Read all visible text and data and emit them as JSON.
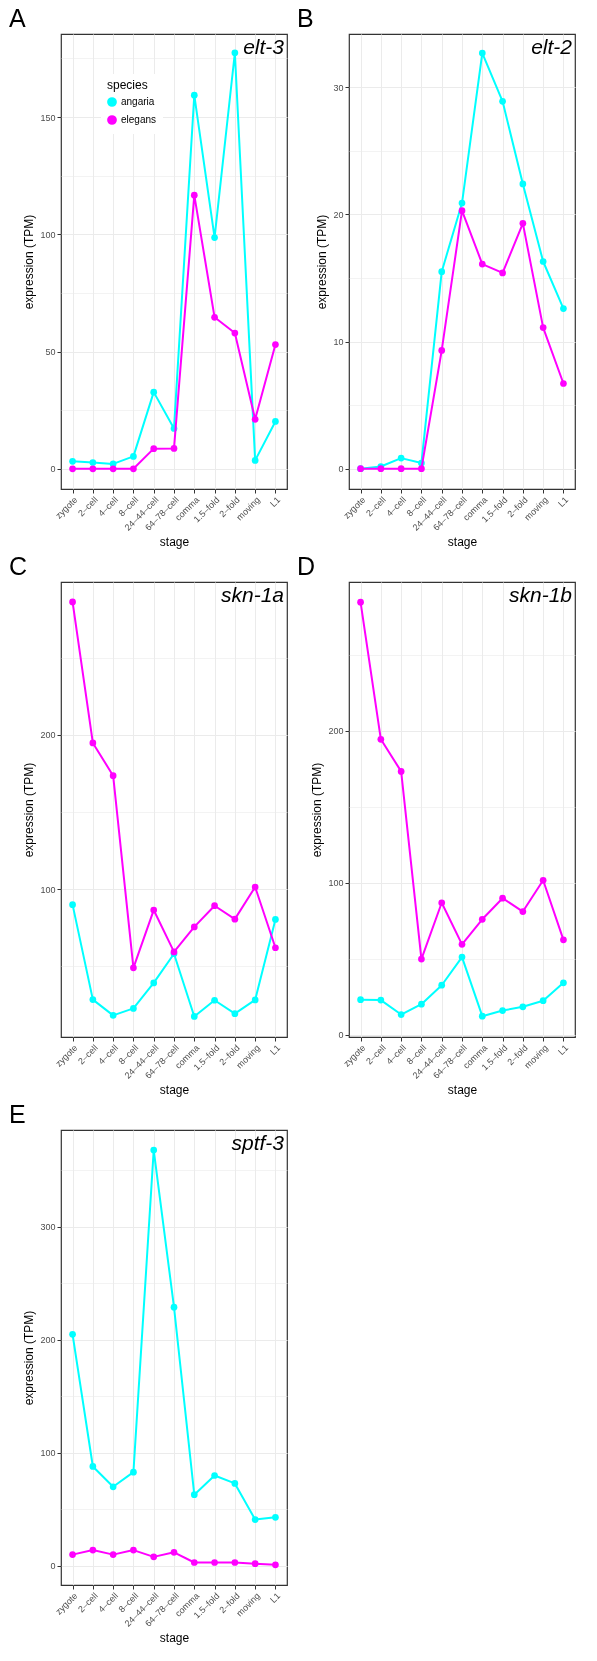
{
  "chart_data": [
    {
      "type": "line",
      "title": "A",
      "annotations": [
        "elt-3"
      ],
      "xlabel": "stage",
      "ylabel": "expression (TPM)",
      "legend_title": "species",
      "legend": "top left",
      "grid": true,
      "marker": "circle",
      "categories": [
        "zygote",
        "2–cell",
        "4–cell",
        "8–cell",
        "24–44–cell",
        "64–78–cell",
        "comma",
        "1.5–fold",
        "2–fold",
        "moving",
        "L1"
      ],
      "ylim": [
        -8.6,
        185.4
      ],
      "yticks": [
        0,
        {
          "value": 25,
          "label": null
        },
        50,
        {
          "value": 75,
          "label": null
        },
        100,
        {
          "value": 125,
          "label": null
        },
        150,
        {
          "value": 175,
          "label": null
        }
      ],
      "series": [
        {
          "name": "angaria",
          "color": "#00ffff",
          "values": [
            3.2,
            2.7,
            2.1,
            5.3,
            32.7,
            17.2,
            159.3,
            98.6,
            177.4,
            3.6,
            20.2
          ]
        },
        {
          "name": "elegans",
          "color": "#ff00ff",
          "values": [
            0,
            0,
            0,
            0,
            8.6,
            8.7,
            116.7,
            64.6,
            57.9,
            21.1,
            53.0
          ]
        }
      ]
    },
    {
      "type": "line",
      "title": "B",
      "annotations": [
        "elt-2"
      ],
      "xlabel": "stage",
      "ylabel": "expression (TPM)",
      "grid": true,
      "marker": "circle",
      "categories": [
        "zygote",
        "2–cell",
        "4–cell",
        "8–cell",
        "24–44–cell",
        "64–78–cell",
        "comma",
        "1.5–fold",
        "2–fold",
        "moving",
        "L1"
      ],
      "ylim": [
        -1.6,
        34.2
      ],
      "yticks": [
        0,
        {
          "value": 5,
          "label": null
        },
        10,
        {
          "value": 15,
          "label": null
        },
        20,
        {
          "value": 25,
          "label": null
        },
        30
      ],
      "series": [
        {
          "color": "#00ffff",
          "values": [
            0,
            0.17,
            0.83,
            0.44,
            15.5,
            20.9,
            32.7,
            28.9,
            22.4,
            16.3,
            12.6
          ]
        },
        {
          "color": "#ff00ff",
          "values": [
            0,
            0,
            0,
            0,
            9.3,
            20.3,
            16.1,
            15.4,
            19.3,
            11.1,
            6.7
          ]
        }
      ]
    },
    {
      "type": "line",
      "title": "C",
      "annotations": [
        "skn-1a"
      ],
      "xlabel": "stage",
      "ylabel": "expression (TPM)",
      "grid": true,
      "marker": "circle",
      "categories": [
        "zygote",
        "2–cell",
        "4–cell",
        "8–cell",
        "24–44–cell",
        "64–78–cell",
        "comma",
        "1.5–fold",
        "2–fold",
        "moving",
        "L1"
      ],
      "ylim": [
        4.3,
        298.9
      ],
      "yticks": [
        {
          "value": 50,
          "label": null
        },
        100,
        {
          "value": 150,
          "label": null
        },
        200,
        {
          "value": 250,
          "label": null
        }
      ],
      "series": [
        {
          "color": "#00ffff",
          "values": [
            90,
            28.5,
            18.3,
            22.8,
            39.3,
            58.2,
            17.6,
            28.1,
            19.4,
            28.3,
            80.4
          ]
        },
        {
          "color": "#ff00ff",
          "values": [
            286,
            194.7,
            173.5,
            49.1,
            86.5,
            59.4,
            75.6,
            89.3,
            80.6,
            101.4,
            62.1
          ]
        }
      ]
    },
    {
      "type": "line",
      "title": "D",
      "annotations": [
        "skn-1b"
      ],
      "xlabel": "stage",
      "ylabel": "expression (TPM)",
      "grid": true,
      "marker": "circle",
      "categories": [
        "zygote",
        "2–cell",
        "4–cell",
        "8–cell",
        "24–44–cell",
        "64–78–cell",
        "comma",
        "1.5–fold",
        "2–fold",
        "moving",
        "L1"
      ],
      "ylim": [
        -1.6,
        298
      ],
      "yticks": [
        0,
        {
          "value": 50,
          "label": null
        },
        100,
        {
          "value": 150,
          "label": null
        },
        200,
        {
          "value": 250,
          "label": null
        }
      ],
      "series": [
        {
          "color": "#00ffff",
          "values": [
            23.0,
            22.7,
            13.2,
            20.0,
            32.5,
            51.0,
            12.1,
            15.8,
            18.3,
            22.3,
            34.1
          ]
        },
        {
          "color": "#ff00ff",
          "values": [
            284.7,
            194.4,
            173.3,
            49.7,
            86.8,
            59.4,
            75.9,
            89.8,
            81.0,
            101.6,
            62.4
          ]
        }
      ]
    },
    {
      "type": "line",
      "title": "E",
      "annotations": [
        "sptf-3"
      ],
      "xlabel": "stage",
      "ylabel": "expression (TPM)",
      "grid": true,
      "marker": "circle",
      "categories": [
        "zygote",
        "2–cell",
        "4–cell",
        "8–cell",
        "24–44–cell",
        "64–78–cell",
        "comma",
        "1.5–fold",
        "2–fold",
        "moving",
        "L1"
      ],
      "ylim": [
        -16.9,
        385.8
      ],
      "yticks": [
        0,
        {
          "value": 50,
          "label": null
        },
        100,
        {
          "value": 150,
          "label": null
        },
        200,
        {
          "value": 250,
          "label": null
        },
        300,
        {
          "value": 350,
          "label": null
        }
      ],
      "series": [
        {
          "color": "#00ffff",
          "values": [
            205,
            88,
            70,
            83,
            368,
            229,
            63,
            80,
            73,
            41,
            43
          ]
        },
        {
          "color": "#ff00ff",
          "values": [
            10,
            14,
            10,
            14,
            8,
            12,
            3,
            3,
            3,
            2,
            1
          ]
        }
      ]
    }
  ]
}
